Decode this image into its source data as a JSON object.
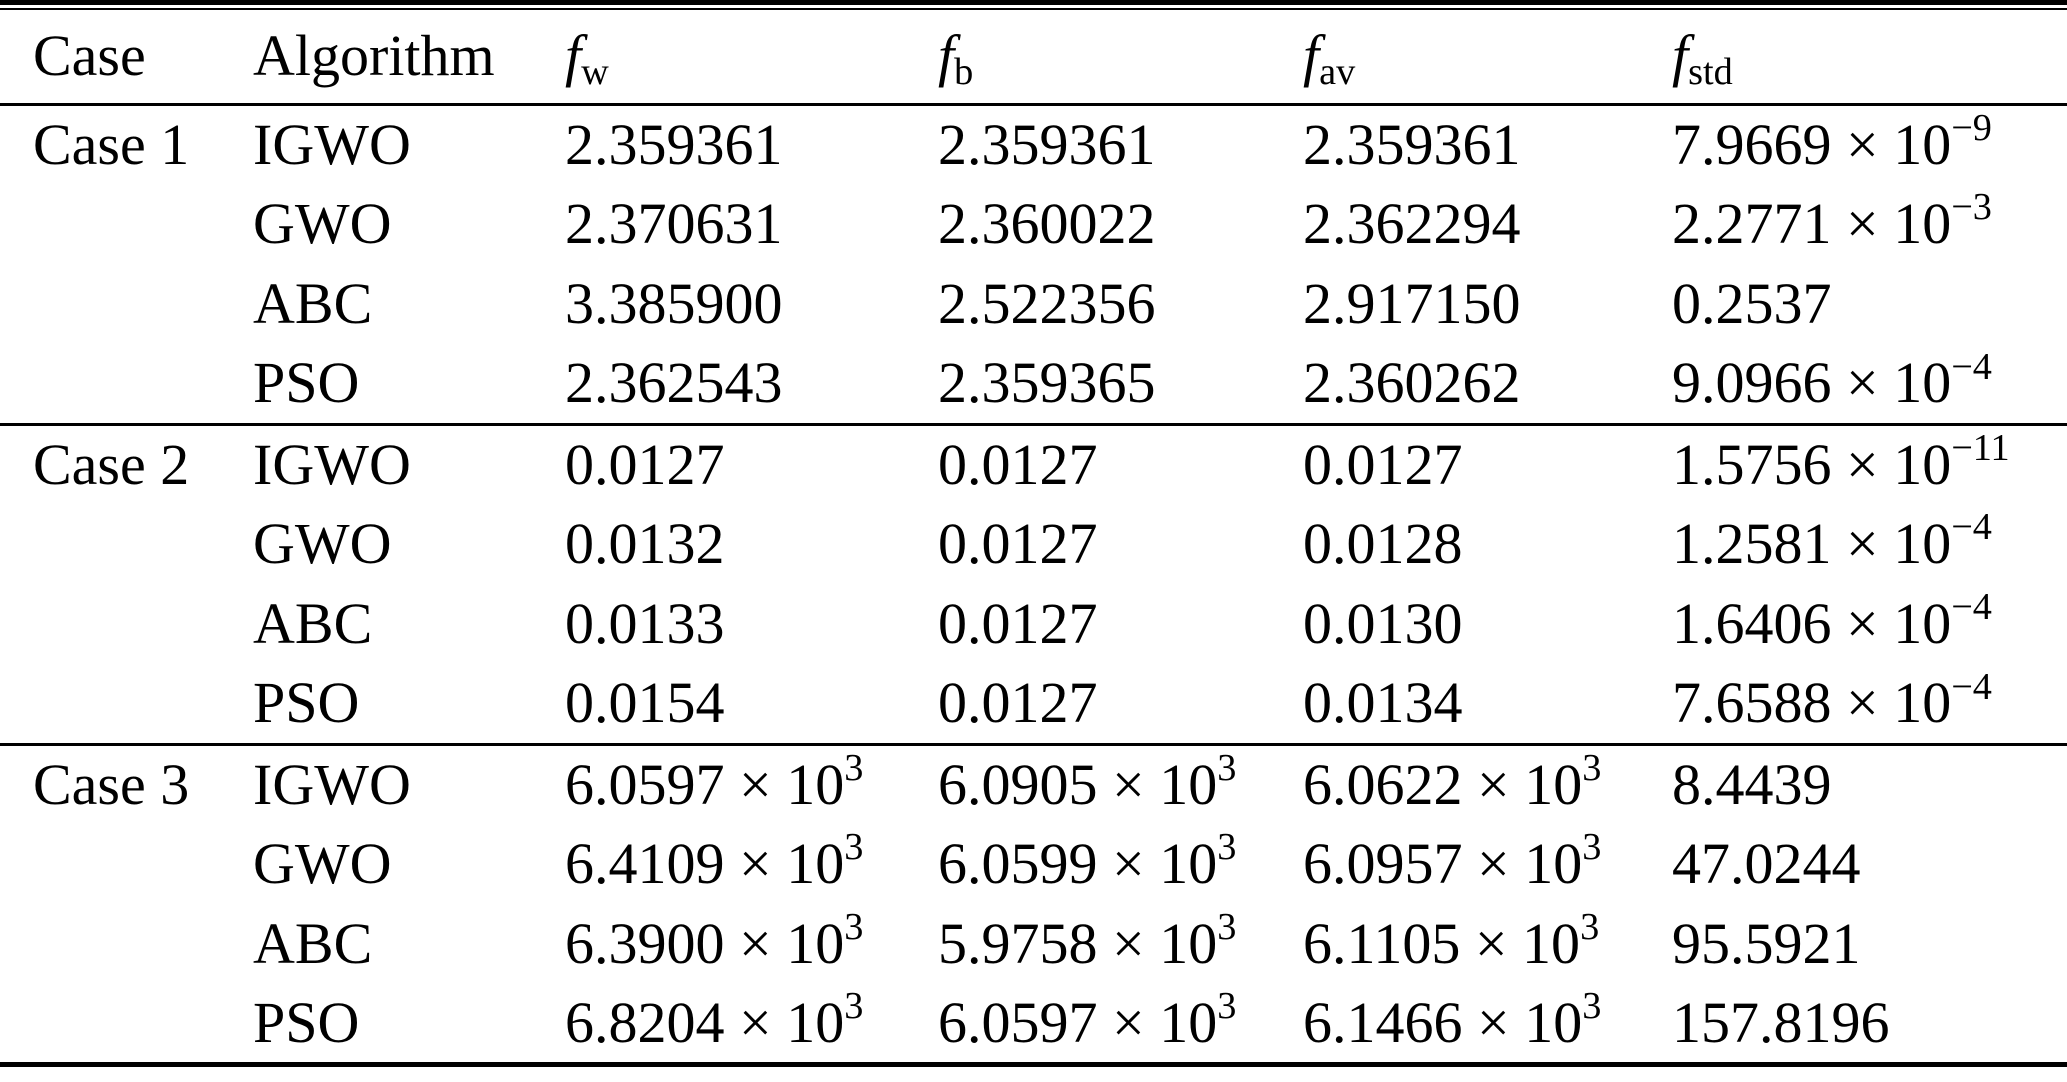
{
  "table": {
    "header": {
      "case_label": "Case",
      "algorithm_label": "Algorithm",
      "f_cols": [
        {
          "base": "f",
          "sub": "w"
        },
        {
          "base": "f",
          "sub": "b"
        },
        {
          "base": "f",
          "sub": "av"
        },
        {
          "base": "f",
          "sub": "std"
        }
      ]
    },
    "groups": [
      {
        "case": "Case 1",
        "rows": [
          {
            "algorithm": "IGWO",
            "f_w": "2.359361",
            "f_b": "2.359361",
            "f_av": "2.359361",
            "f_std": "7.9669 × 10^{−9}"
          },
          {
            "algorithm": "GWO",
            "f_w": "2.370631",
            "f_b": "2.360022",
            "f_av": "2.362294",
            "f_std": "2.2771 × 10^{−3}"
          },
          {
            "algorithm": "ABC",
            "f_w": "3.385900",
            "f_b": "2.522356",
            "f_av": "2.917150",
            "f_std": "0.2537"
          },
          {
            "algorithm": "PSO",
            "f_w": "2.362543",
            "f_b": "2.359365",
            "f_av": "2.360262",
            "f_std": "9.0966 × 10^{−4}"
          }
        ]
      },
      {
        "case": "Case 2",
        "rows": [
          {
            "algorithm": "IGWO",
            "f_w": "0.0127",
            "f_b": "0.0127",
            "f_av": "0.0127",
            "f_std": "1.5756 × 10^{−11}"
          },
          {
            "algorithm": "GWO",
            "f_w": "0.0132",
            "f_b": "0.0127",
            "f_av": "0.0128",
            "f_std": "1.2581 × 10^{−4}"
          },
          {
            "algorithm": "ABC",
            "f_w": "0.0133",
            "f_b": "0.0127",
            "f_av": "0.0130",
            "f_std": "1.6406 × 10^{−4}"
          },
          {
            "algorithm": "PSO",
            "f_w": "0.0154",
            "f_b": "0.0127",
            "f_av": "0.0134",
            "f_std": "7.6588 × 10^{−4}"
          }
        ]
      },
      {
        "case": "Case 3",
        "rows": [
          {
            "algorithm": "IGWO",
            "f_w": "6.0597 × 10^{3}",
            "f_b": "6.0905 × 10^{3}",
            "f_av": "6.0622 × 10^{3}",
            "f_std": "8.4439"
          },
          {
            "algorithm": "GWO",
            "f_w": "6.4109 × 10^{3}",
            "f_b": "6.0599 × 10^{3}",
            "f_av": "6.0957 × 10^{3}",
            "f_std": "47.0244"
          },
          {
            "algorithm": "ABC",
            "f_w": "6.3900 × 10^{3}",
            "f_b": "5.9758 × 10^{3}",
            "f_av": "6.1105 × 10^{3}",
            "f_std": "95.5921"
          },
          {
            "algorithm": "PSO",
            "f_w": "6.8204 × 10^{3}",
            "f_b": "6.0597 × 10^{3}",
            "f_av": "6.1466 × 10^{3}",
            "f_std": "157.8196"
          }
        ]
      }
    ]
  }
}
